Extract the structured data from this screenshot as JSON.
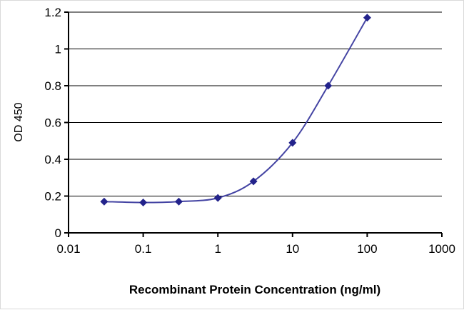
{
  "chart_data": {
    "type": "line",
    "title": "",
    "xlabel": "Recombinant Protein Concentration (ng/ml)",
    "ylabel": "OD 450",
    "x_scale": "log",
    "xlim": [
      0.01,
      1000
    ],
    "ylim": [
      0,
      1.2
    ],
    "x_ticks": [
      0.01,
      0.1,
      1,
      10,
      100,
      1000
    ],
    "x_tick_labels": [
      "0.01",
      "0.1",
      "1",
      "10",
      "100",
      "1000"
    ],
    "y_ticks": [
      0,
      0.2,
      0.4,
      0.6,
      0.8,
      1,
      1.2
    ],
    "y_tick_labels": [
      "0",
      "0.2",
      "0.4",
      "0.6",
      "0.8",
      "1",
      "1.2"
    ],
    "grid": "horizontal",
    "legend": "none",
    "series": [
      {
        "name": "OD 450",
        "x": [
          0.03,
          0.1,
          0.3,
          1,
          3,
          10,
          30,
          100
        ],
        "y": [
          0.17,
          0.165,
          0.17,
          0.19,
          0.28,
          0.49,
          0.8,
          1.17
        ],
        "marker": "diamond"
      }
    ]
  },
  "colors": {
    "line": "#4444a3",
    "marker": "#23238b",
    "grid": "#000000",
    "axis": "#000000",
    "background": "#ffffff"
  }
}
